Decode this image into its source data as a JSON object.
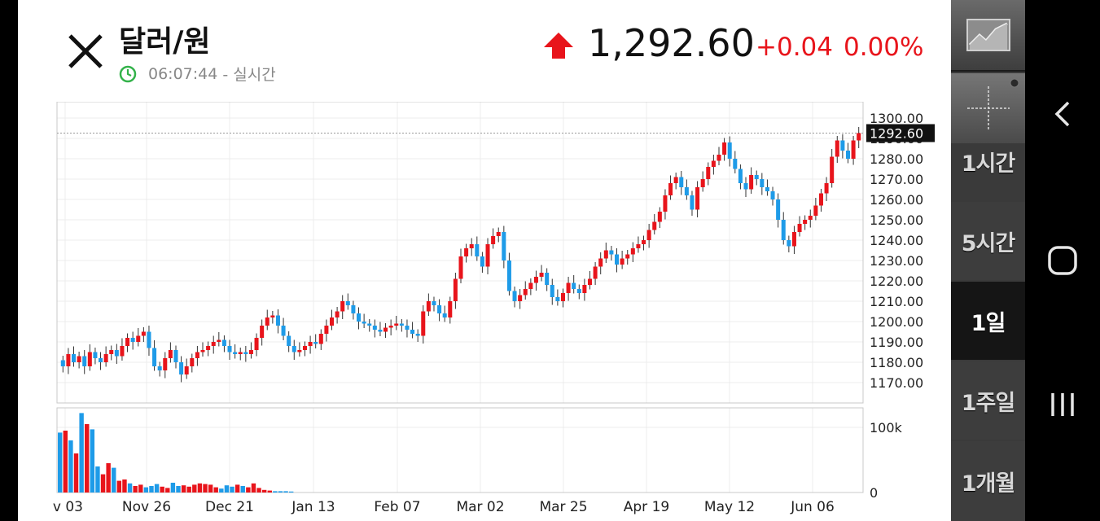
{
  "header": {
    "title": "달러/원",
    "time": "06:07:44",
    "time_suffix": "- 실시간",
    "price": "1,292.60",
    "change": "+0.04",
    "change_pct": "0.00%"
  },
  "colors": {
    "up": "#e8141b",
    "down": "#1e9be8",
    "clock": "#33b24a",
    "sidebar_bg": "#3a3a3a"
  },
  "icons": {
    "close": "close-icon",
    "clock": "clock-icon",
    "trend": "up-arrow-icon",
    "chart_type": "line-chart-icon",
    "crosshair": "crosshair-icon",
    "nav_back": "back-icon",
    "nav_home": "home-icon",
    "nav_recents": "recents-icon"
  },
  "sidebar": {
    "periods": [
      "1시간",
      "5시간",
      "1일",
      "1주일",
      "1개월"
    ],
    "active_period": "1일"
  },
  "chart_data": {
    "type": "candlestick",
    "interval": "1일",
    "ylim": [
      1165,
      1305
    ],
    "y_ticks": [
      "1300.00",
      "1290.00",
      "1280.00",
      "1270.00",
      "1260.00",
      "1250.00",
      "1240.00",
      "1230.00",
      "1220.00",
      "1210.00",
      "1200.00",
      "1190.00",
      "1180.00",
      "1170.00"
    ],
    "current_price_label": "1292.60",
    "current_price": 1292.6,
    "x_ticks": [
      "v 03",
      "Nov 26",
      "Dec 21",
      "Jan 13",
      "Feb 07",
      "Mar 02",
      "Mar 25",
      "Apr 19",
      "May 12",
      "Jun 06"
    ],
    "grid": true,
    "close_series": [
      1178,
      1184,
      1180,
      1183,
      1178,
      1185,
      1182,
      1180,
      1184,
      1186,
      1183,
      1188,
      1192,
      1190,
      1193,
      1195,
      1187,
      1178,
      1176,
      1182,
      1186,
      1180,
      1174,
      1178,
      1182,
      1185,
      1186,
      1188,
      1190,
      1191,
      1188,
      1185,
      1184,
      1185,
      1184,
      1186,
      1192,
      1198,
      1202,
      1203,
      1198,
      1193,
      1188,
      1185,
      1186,
      1188,
      1190,
      1189,
      1194,
      1198,
      1202,
      1205,
      1210,
      1208,
      1204,
      1200,
      1199,
      1198,
      1196,
      1195,
      1197,
      1198,
      1199,
      1198,
      1196,
      1194,
      1193,
      1205,
      1210,
      1208,
      1204,
      1202,
      1210,
      1221,
      1232,
      1236,
      1238,
      1232,
      1227,
      1238,
      1242,
      1244,
      1230,
      1215,
      1210,
      1213,
      1216,
      1219,
      1222,
      1224,
      1218,
      1212,
      1210,
      1214,
      1219,
      1216,
      1214,
      1218,
      1221,
      1227,
      1231,
      1235,
      1233,
      1228,
      1231,
      1233,
      1236,
      1238,
      1240,
      1245,
      1249,
      1254,
      1262,
      1268,
      1271,
      1266,
      1262,
      1255,
      1266,
      1270,
      1276,
      1279,
      1282,
      1288,
      1280,
      1275,
      1268,
      1265,
      1272,
      1270,
      1266,
      1264,
      1260,
      1250,
      1240,
      1237,
      1244,
      1248,
      1250,
      1252,
      1257,
      1263,
      1268,
      1281,
      1289,
      1284,
      1280,
      1289,
      1292.6
    ],
    "volume_ylim": [
      0,
      130000
    ],
    "volume_ticks": [
      "100k",
      "0"
    ],
    "volume_series": [
      92000,
      95000,
      80000,
      60000,
      122000,
      105000,
      97000,
      40000,
      28000,
      45000,
      38000,
      18000,
      20000,
      14000,
      10000,
      12000,
      8000,
      10000,
      13000,
      9000,
      7000,
      15000,
      10000,
      11000,
      9000,
      12000,
      14000,
      13000,
      12000,
      8000,
      6000,
      11000,
      9000,
      12000,
      10000,
      8000,
      14000,
      7000,
      4000,
      3000,
      2000,
      2000,
      2000,
      1500
    ]
  }
}
